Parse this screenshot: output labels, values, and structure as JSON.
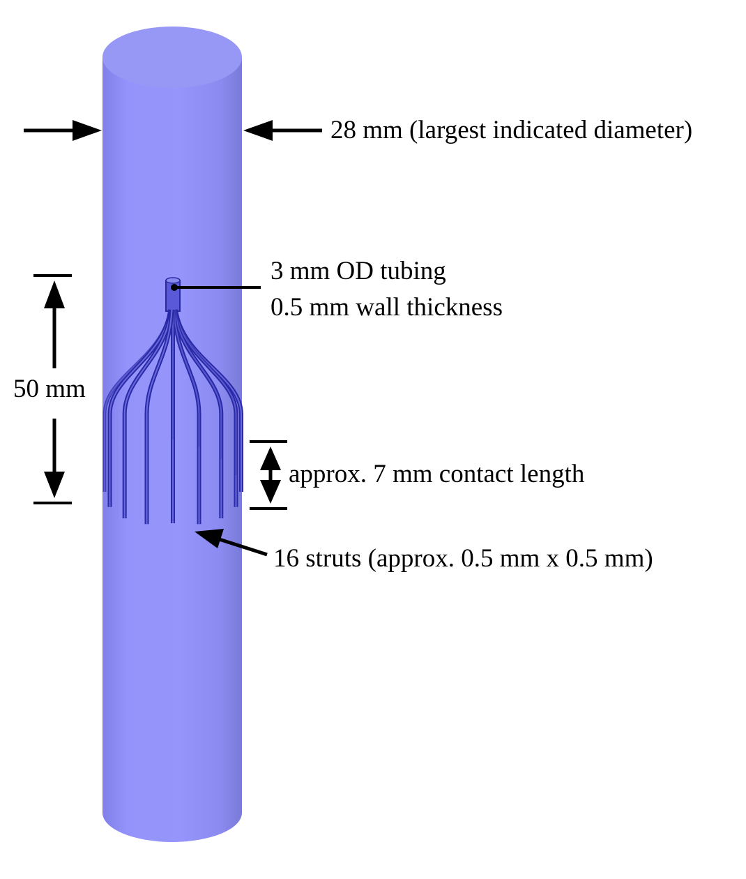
{
  "colors": {
    "cylinder_fill": "#9090f8",
    "cylinder_shade": "#7676d8",
    "cylinder_top": "#9999f4",
    "strut_color": "#2a2aa8",
    "strut_highlight": "#7070e0",
    "annotation": "#000000",
    "background": "#ffffff"
  },
  "labels": {
    "diameter": "28 mm (largest indicated diameter)",
    "tubing_line1": "3 mm OD tubing",
    "tubing_line2": "0.5 mm wall thickness",
    "height": "50 mm",
    "contact": "approx. 7 mm contact length",
    "struts": "16 struts (approx. 0.5 mm x 0.5 mm)"
  },
  "strut_count": 16
}
